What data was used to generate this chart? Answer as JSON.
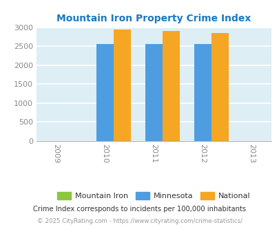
{
  "title": "Mountain Iron Property Crime Index",
  "title_color": "#1a7abf",
  "categories": [
    2009,
    2010,
    2011,
    2012,
    2013
  ],
  "bar_years": [
    2010,
    2011,
    2012
  ],
  "mountain_iron": [
    0,
    0,
    0
  ],
  "minnesota": [
    2560,
    2550,
    2565
  ],
  "national": [
    2930,
    2910,
    2855
  ],
  "bar_width": 0.35,
  "minnesota_color": "#4d9de0",
  "national_color": "#f5a623",
  "mountain_iron_color": "#8dc63f",
  "ylim": [
    0,
    3000
  ],
  "yticks": [
    0,
    500,
    1000,
    1500,
    2000,
    2500,
    3000
  ],
  "bg_color": "#ddeef4",
  "grid_color": "#ffffff",
  "legend_labels": [
    "Mountain Iron",
    "Minnesota",
    "National"
  ],
  "footnote1": "Crime Index corresponds to incidents per 100,000 inhabitants",
  "footnote2": "© 2025 CityRating.com - https://www.cityrating.com/crime-statistics/",
  "footnote1_color": "#333333",
  "footnote2_color": "#999999"
}
